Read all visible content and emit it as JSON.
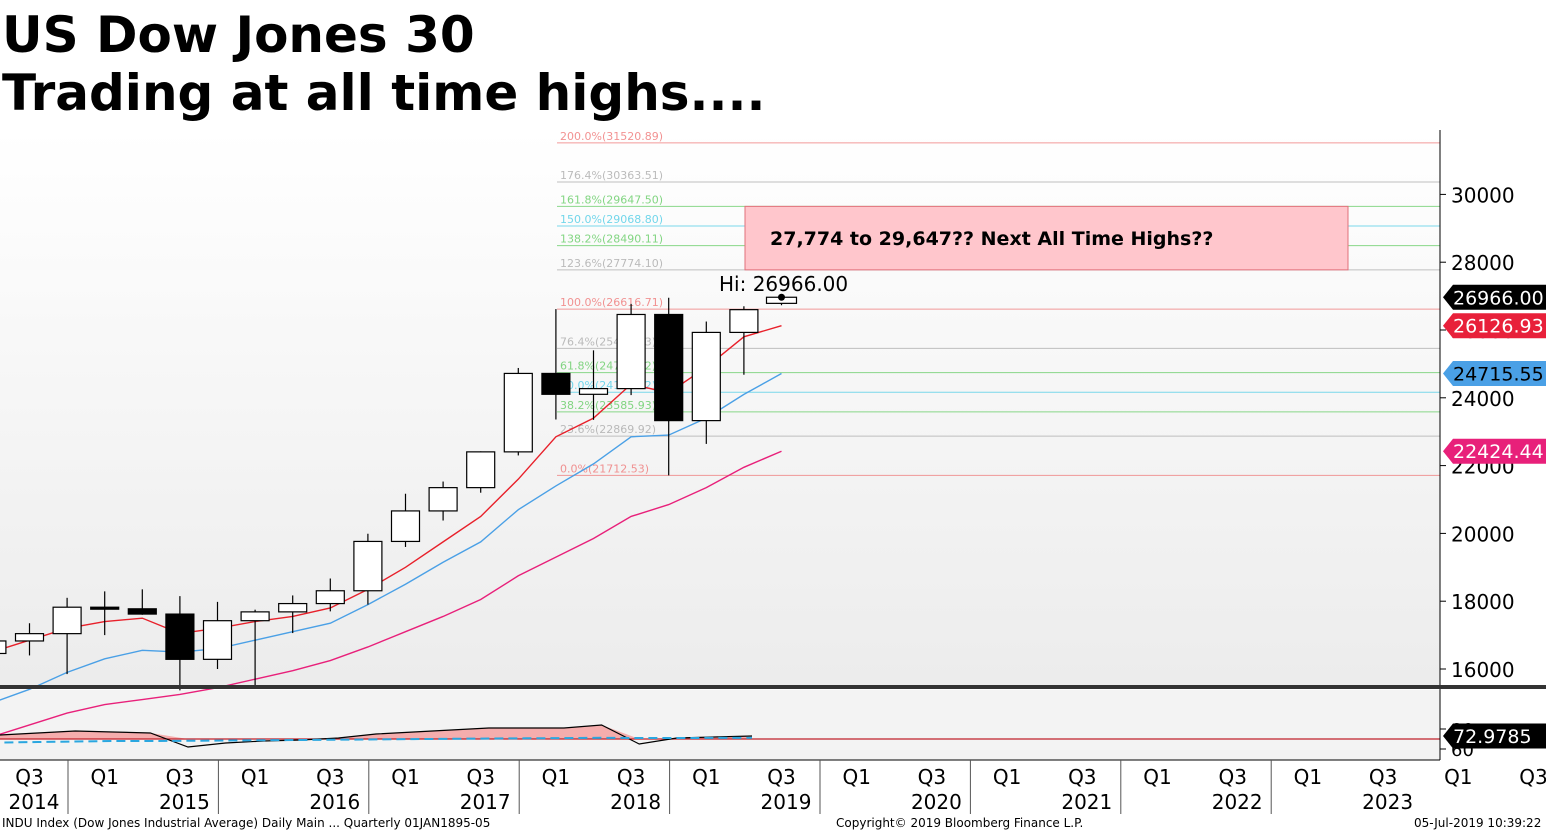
{
  "header": {
    "title_line1": "US Dow Jones 30",
    "title_line2": "Trading at all time highs...."
  },
  "footer": {
    "left": "INDU Index (Dow Jones Industrial Average) Daily Main ...  Quarterly 01JAN1895-05",
    "center": "Copyright© 2019 Bloomberg Finance L.P.",
    "right": "05-Jul-2019 10:39:22"
  },
  "colors": {
    "ma_fast": "#e8202a",
    "ma_mid": "#4aa0e6",
    "ma_slow": "#e8207a",
    "target_box_fill": "#ffc6cc",
    "target_box_stroke": "#e0707a",
    "rsi_fill": "#f4a0a0",
    "rsi_signal": "#2aa7e0"
  },
  "annotations": {
    "target_box_label": "27,774 to 29,647?? Next All Time Highs??",
    "target_box_range": [
      27774,
      29647
    ],
    "high_label": "Hi: 26966.00"
  },
  "chart_data": {
    "type": "candlestick",
    "xaxis": {
      "quarter_labels": [
        "Q3",
        "Q1",
        "Q3",
        "Q1",
        "Q3",
        "Q1",
        "Q3",
        "Q1",
        "Q3",
        "Q1",
        "Q3",
        "Q1",
        "Q3",
        "Q1",
        "Q3",
        "Q1",
        "Q3",
        "Q1",
        "Q3",
        "Q1",
        "Q3"
      ],
      "year_labels": [
        "2014",
        "2015",
        "2016",
        "2017",
        "2018",
        "2019",
        "2020",
        "2021",
        "2022",
        "2023"
      ]
    },
    "yaxis": {
      "ticks": [
        16000,
        18000,
        20000,
        22000,
        24000,
        26000,
        28000,
        30000
      ],
      "range": [
        15500,
        31700
      ]
    },
    "price_tags": [
      {
        "value": "26966.00",
        "price": 26966,
        "bg": "#000000",
        "fg": "#ffffff"
      },
      {
        "value": "26126.93",
        "price": 26127,
        "bg": "#e8203a",
        "fg": "#ffffff"
      },
      {
        "value": "24715.55",
        "price": 24716,
        "bg": "#4aa0e6",
        "fg": "#000000"
      },
      {
        "value": "22424.44",
        "price": 22424,
        "bg": "#e8207a",
        "fg": "#ffffff"
      }
    ],
    "fib_levels": [
      {
        "label": "200.0%(31520.89)",
        "price": 31521,
        "color": "#f08080"
      },
      {
        "label": "176.4%(30363.51)",
        "price": 30364,
        "color": "#b0b0b0"
      },
      {
        "label": "161.8%(29647.50)",
        "price": 29648,
        "color": "#6dcf6d"
      },
      {
        "label": "150.0%(29068.80)",
        "price": 29069,
        "color": "#5ad0e8"
      },
      {
        "label": "138.2%(28490.11)",
        "price": 28490,
        "color": "#6dcf6d"
      },
      {
        "label": "123.6%(27774.10)",
        "price": 27774,
        "color": "#b0b0b0"
      },
      {
        "label": "100.0%(26616.71)",
        "price": 26617,
        "color": "#f08080"
      },
      {
        "label": "76.4%(25459.33)",
        "price": 25459,
        "color": "#b0b0b0"
      },
      {
        "label": "61.8%(24743.32)",
        "price": 24743,
        "color": "#6dcf6d"
      },
      {
        "label": "50.0%(24164.62)",
        "price": 24165,
        "color": "#5ad0e8"
      },
      {
        "label": "38.2%(23585.93)",
        "price": 23586,
        "color": "#6dcf6d"
      },
      {
        "label": "23.6%(22869.92)",
        "price": 22870,
        "color": "#b0b0b0"
      },
      {
        "label": "0.0%(21712.53)",
        "price": 21713,
        "color": "#f08080"
      }
    ],
    "candles": [
      {
        "q": "2014Q2",
        "o": 16458,
        "h": 16970,
        "l": 16300,
        "c": 16827
      },
      {
        "q": "2014Q3",
        "o": 16827,
        "h": 17350,
        "l": 16400,
        "c": 17043
      },
      {
        "q": "2014Q4",
        "o": 17043,
        "h": 18100,
        "l": 15850,
        "c": 17823
      },
      {
        "q": "2015Q1",
        "o": 17823,
        "h": 18290,
        "l": 17000,
        "c": 17776
      },
      {
        "q": "2015Q2",
        "o": 17776,
        "h": 18350,
        "l": 17600,
        "c": 17620
      },
      {
        "q": "2015Q3",
        "o": 17620,
        "h": 18150,
        "l": 15370,
        "c": 16285
      },
      {
        "q": "2015Q4",
        "o": 16285,
        "h": 17980,
        "l": 16000,
        "c": 17425
      },
      {
        "q": "2016Q1",
        "o": 17425,
        "h": 17750,
        "l": 15450,
        "c": 17685
      },
      {
        "q": "2016Q2",
        "o": 17685,
        "h": 18170,
        "l": 17060,
        "c": 17930
      },
      {
        "q": "2016Q3",
        "o": 17930,
        "h": 18670,
        "l": 17700,
        "c": 18308
      },
      {
        "q": "2016Q4",
        "o": 18308,
        "h": 19990,
        "l": 17900,
        "c": 19763
      },
      {
        "q": "2017Q1",
        "o": 19763,
        "h": 21170,
        "l": 19600,
        "c": 20663
      },
      {
        "q": "2017Q2",
        "o": 20663,
        "h": 21530,
        "l": 20380,
        "c": 21350
      },
      {
        "q": "2017Q3",
        "o": 21350,
        "h": 22420,
        "l": 21200,
        "c": 22405
      },
      {
        "q": "2017Q4",
        "o": 22405,
        "h": 24880,
        "l": 22300,
        "c": 24719
      },
      {
        "q": "2018Q1",
        "o": 24719,
        "h": 26617,
        "l": 23360,
        "c": 24103
      },
      {
        "q": "2018Q2",
        "o": 24103,
        "h": 25400,
        "l": 23350,
        "c": 24271
      },
      {
        "q": "2018Q3",
        "o": 24271,
        "h": 26770,
        "l": 24080,
        "c": 26458
      },
      {
        "q": "2018Q4",
        "o": 26458,
        "h": 26950,
        "l": 21713,
        "c": 23327
      },
      {
        "q": "2019Q1",
        "o": 23327,
        "h": 26250,
        "l": 22640,
        "c": 25929
      },
      {
        "q": "2019Q2",
        "o": 25929,
        "h": 26700,
        "l": 24680,
        "c": 26600
      },
      {
        "q": "2019Q3",
        "o": 26786,
        "h": 26966,
        "l": 26730,
        "c": 26966
      }
    ],
    "moving_averages": {
      "fast": [
        16500,
        16850,
        17200,
        17400,
        17500,
        17050,
        17200,
        17400,
        17550,
        17800,
        18350,
        19000,
        19750,
        20500,
        21600,
        22850,
        23400,
        24400,
        24150,
        24900,
        25800,
        26127
      ],
      "mid": [
        15000,
        15400,
        15900,
        16300,
        16550,
        16500,
        16600,
        16850,
        17100,
        17350,
        17900,
        18500,
        19150,
        19750,
        20700,
        21400,
        22050,
        22850,
        22900,
        23400,
        24100,
        24716
      ],
      "slow": [
        14000,
        14350,
        14700,
        14950,
        15100,
        15250,
        15450,
        15700,
        15950,
        16250,
        16650,
        17100,
        17550,
        18050,
        18750,
        19300,
        19850,
        20500,
        20850,
        21350,
        21950,
        22424
      ]
    },
    "rsi": {
      "yticks": [
        60,
        80
      ],
      "range": [
        55,
        92
      ],
      "current_label": "72.9785",
      "line": [
        72,
        74,
        76,
        78,
        77,
        76,
        62,
        66,
        68,
        69,
        71,
        75,
        77,
        79,
        81,
        81,
        81,
        84,
        65,
        71,
        72,
        73
      ],
      "signal": [
        66,
        66.5,
        67,
        67.5,
        68,
        68,
        68.2,
        68.5,
        68.8,
        69,
        69.3,
        69.6,
        69.9,
        70.2,
        70.5,
        70.7,
        70.9,
        71.2,
        71,
        71,
        71.1,
        71.2
      ],
      "reference": 70
    }
  }
}
